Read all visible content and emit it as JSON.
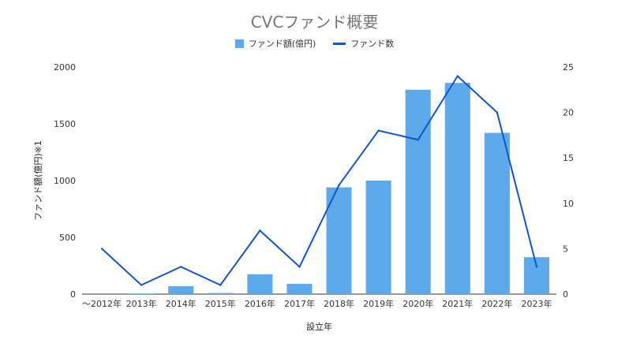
{
  "chart_data": {
    "type": "bar",
    "title": "CVCファンド概要",
    "xlabel": "設立年",
    "ylabel": "ファンド額(億円)※1",
    "y2label": "",
    "categories": [
      "～2012年",
      "2013年",
      "2014年",
      "2015年",
      "2016年",
      "2017年",
      "2018年",
      "2019年",
      "2020年",
      "2021年",
      "2022年",
      "2023年"
    ],
    "series": [
      {
        "name": "ファンド額(億円)",
        "type": "bar",
        "axis": "left",
        "color": "#5da9e9",
        "values": [
          0,
          5,
          70,
          10,
          175,
          90,
          940,
          1000,
          1800,
          1860,
          1420,
          325
        ]
      },
      {
        "name": "ファンド数",
        "type": "line",
        "axis": "right",
        "color": "#1155cc",
        "values": [
          5,
          1,
          3,
          1,
          7,
          3,
          12,
          18,
          17,
          24,
          20,
          3
        ]
      }
    ],
    "ylim": [
      0,
      2000
    ],
    "y2lim": [
      0,
      25
    ],
    "yticks": [
      0,
      500,
      1000,
      1500,
      2000
    ],
    "y2ticks": [
      0,
      5,
      10,
      15,
      20,
      25
    ],
    "legend_position": "top-center",
    "grid": false
  }
}
